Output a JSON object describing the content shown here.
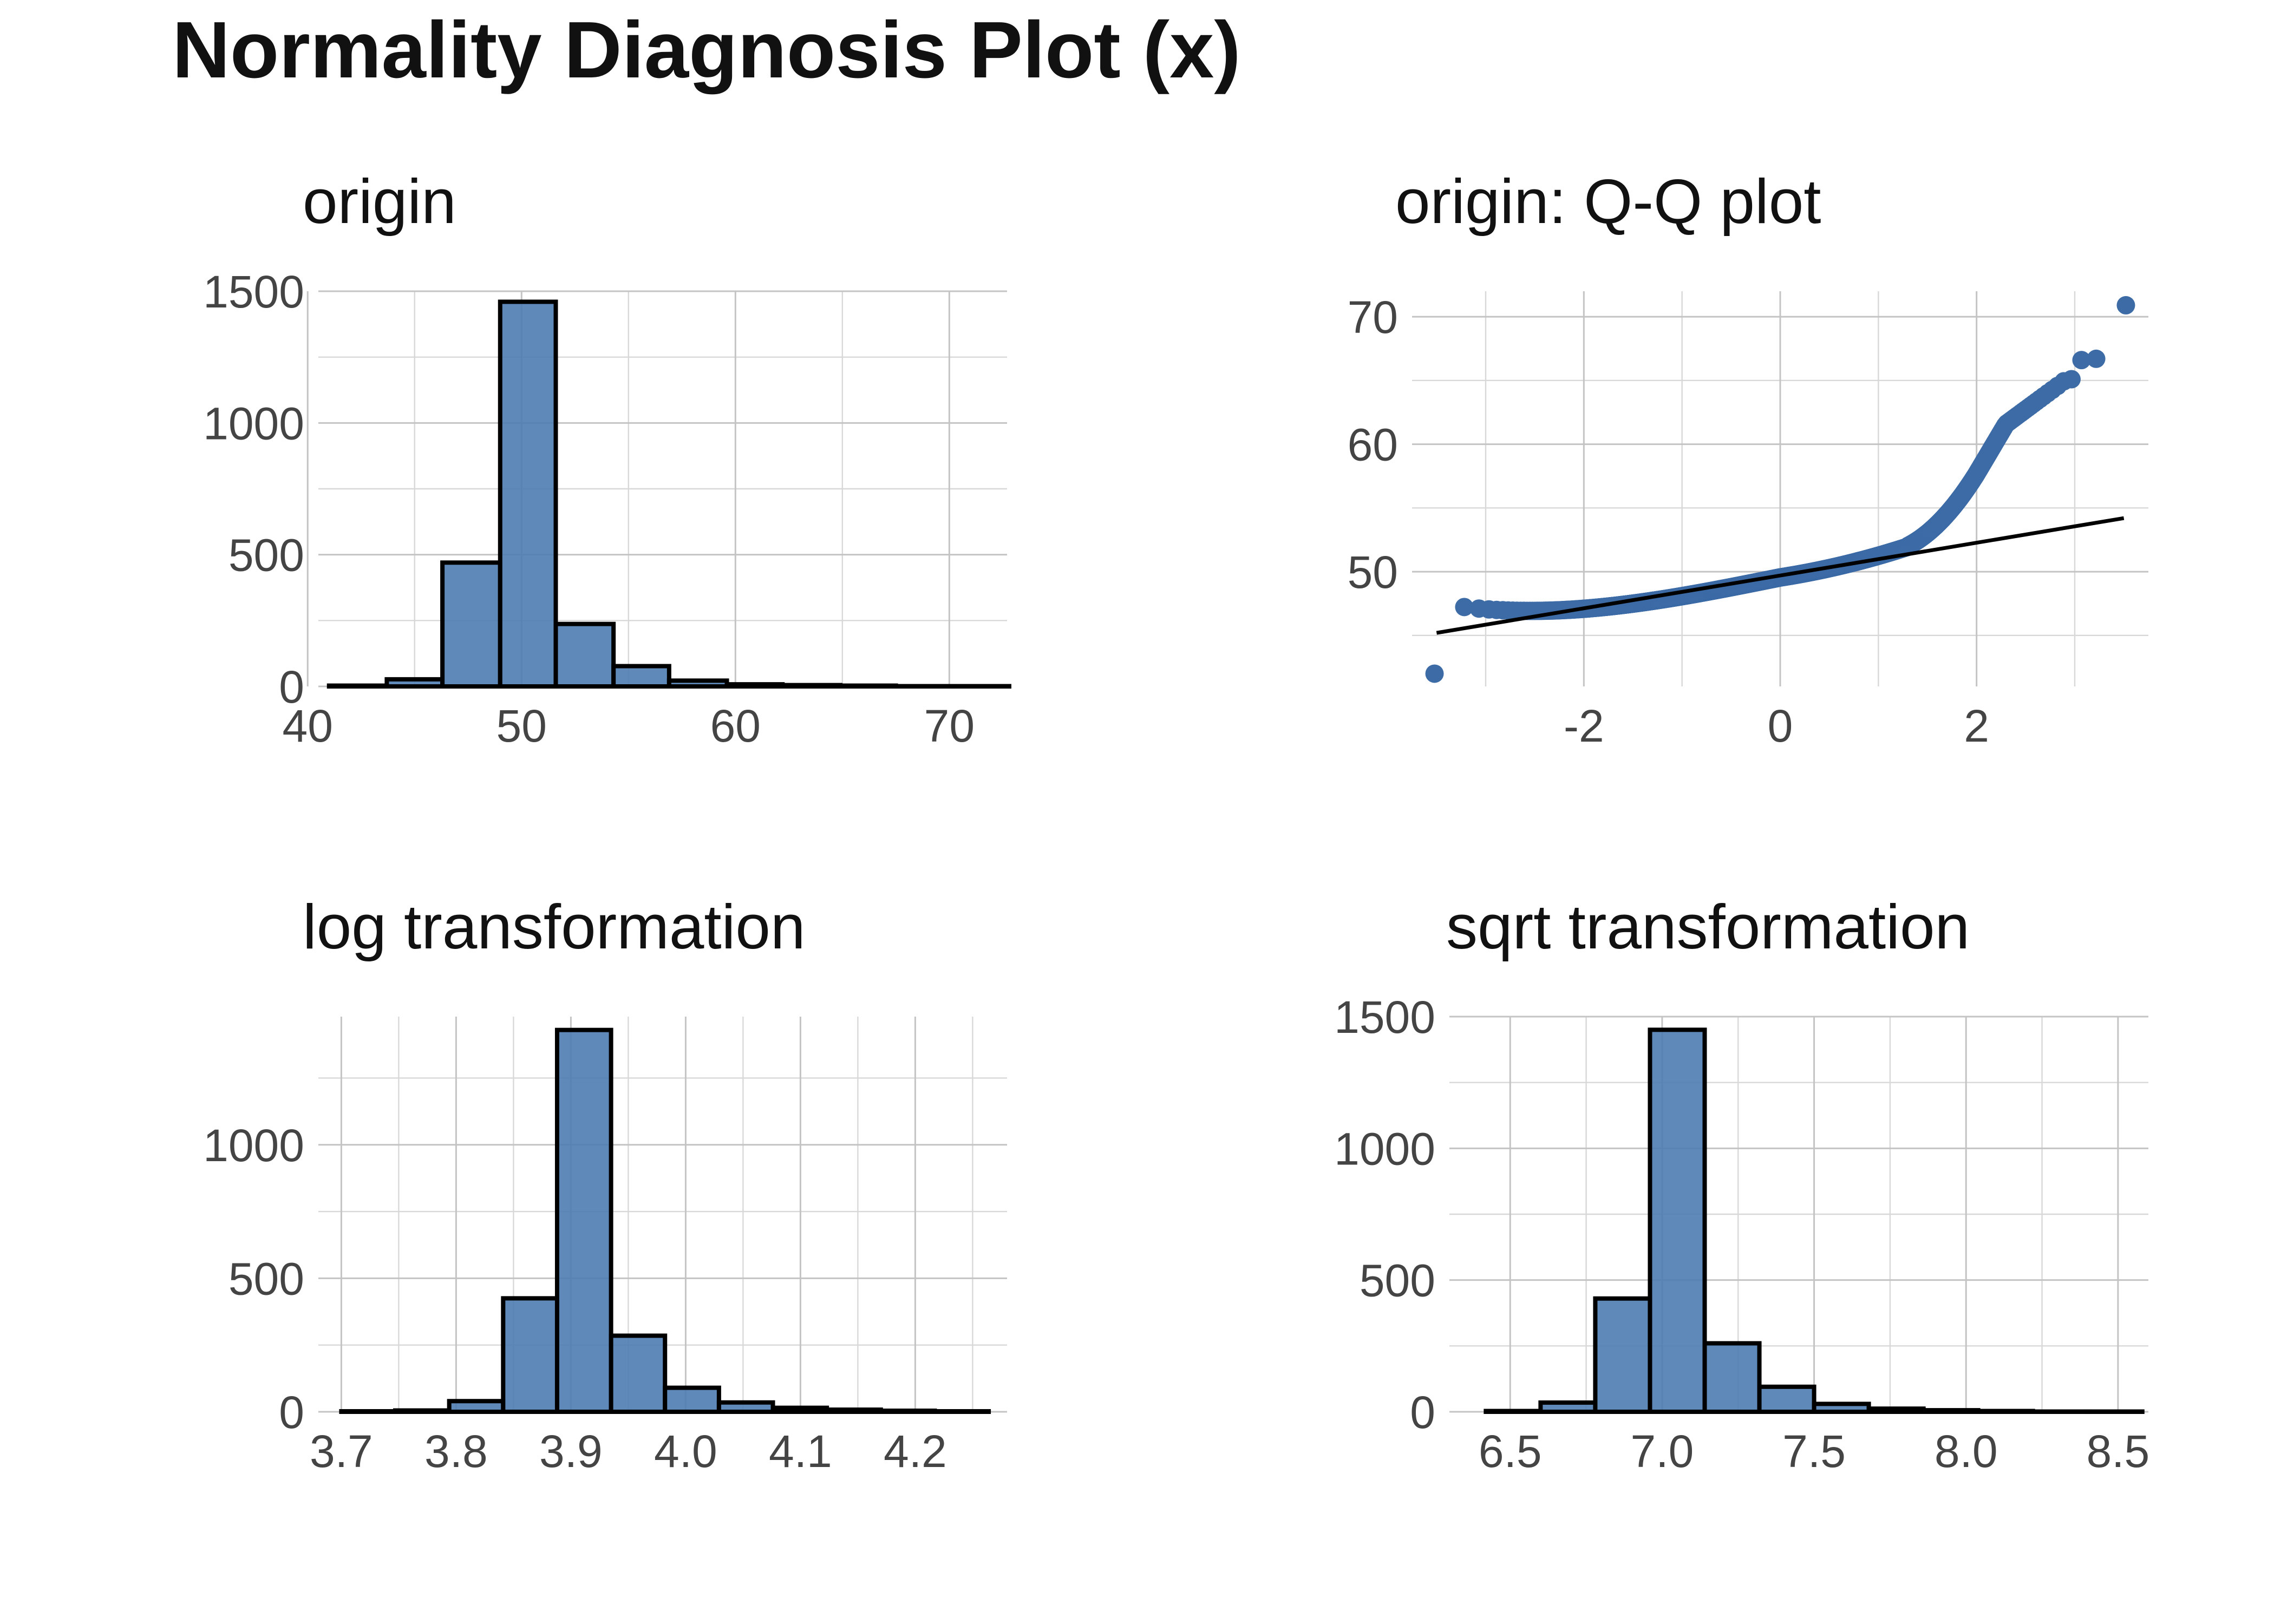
{
  "title": "Normality Diagnosis Plot (x)",
  "chart_data": [
    {
      "type": "bar",
      "title": "origin",
      "xlim": [
        40.5,
        72.7
      ],
      "ylim": [
        0,
        1500
      ],
      "x_ticks": [
        40,
        50,
        60,
        70
      ],
      "y_ticks": [
        0,
        500,
        1000,
        1500
      ],
      "bin_edges": [
        41.0,
        43.7,
        46.3,
        49.0,
        51.6,
        54.3,
        56.9,
        59.6,
        62.2,
        64.9,
        67.5,
        70.2,
        72.8
      ],
      "values": [
        3,
        27,
        470,
        1460,
        237,
        77,
        22,
        8,
        5,
        3,
        1,
        1
      ],
      "color": "#4e7cb0"
    },
    {
      "type": "scatter",
      "title": "origin: Q-Q plot",
      "xlim": [
        -3.75,
        3.75
      ],
      "ylim": [
        41,
        72
      ],
      "x_ticks": [
        -2,
        0,
        2
      ],
      "y_ticks": [
        50,
        60,
        70
      ],
      "reference_line": {
        "x": [
          -3.5,
          3.5
        ],
        "y": [
          45.2,
          54.2
        ]
      },
      "color": "#3c6ba6"
    },
    {
      "type": "bar",
      "title": "log transformation",
      "xlim": [
        3.68,
        4.28
      ],
      "ylim": [
        0,
        1480
      ],
      "x_ticks": [
        3.7,
        3.8,
        3.9,
        4.0,
        4.1,
        4.2
      ],
      "y_ticks": [
        0,
        500,
        1000
      ],
      "bin_edges": [
        3.7,
        3.747,
        3.794,
        3.841,
        3.888,
        3.935,
        3.982,
        4.029,
        4.076,
        4.123,
        4.17,
        4.217,
        4.264
      ],
      "values": [
        2,
        5,
        40,
        425,
        1430,
        285,
        90,
        35,
        15,
        8,
        4,
        2
      ],
      "color": "#4e7cb0"
    },
    {
      "type": "bar",
      "title": "sqrt transformation",
      "xlim": [
        6.3,
        8.6
      ],
      "ylim": [
        0,
        1500
      ],
      "x_ticks": [
        6.5,
        7.0,
        7.5,
        8.0,
        8.5
      ],
      "y_ticks": [
        0,
        500,
        1000,
        1500
      ],
      "bin_edges": [
        6.42,
        6.6,
        6.78,
        6.96,
        7.14,
        7.32,
        7.5,
        7.68,
        7.86,
        8.04,
        8.22,
        8.4,
        8.58
      ],
      "values": [
        3,
        35,
        430,
        1450,
        260,
        95,
        30,
        12,
        6,
        3,
        1,
        1
      ],
      "color": "#4e7cb0"
    }
  ]
}
